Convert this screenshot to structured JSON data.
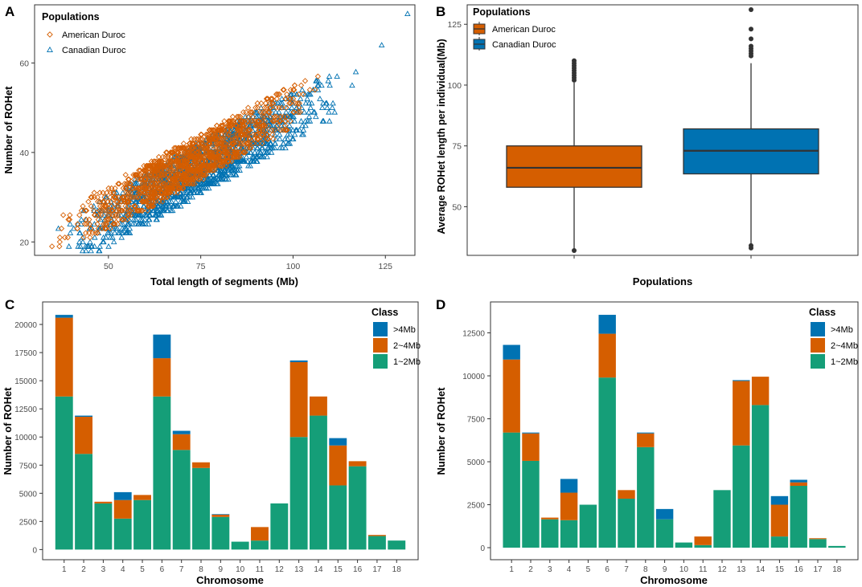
{
  "colors": {
    "orange": "#D55E00",
    "blue": "#0072B2",
    "green": "#159E78",
    "dark": "#333333",
    "frame": "#333333"
  },
  "chart_data": [
    {
      "id": "A",
      "panel_label": "A",
      "type": "scatter",
      "xlabel": "Total length of segments (Mb)",
      "ylabel": "Number of ROHet",
      "xlim": [
        30,
        133
      ],
      "ylim": [
        17,
        73
      ],
      "xticks": [
        50,
        75,
        100,
        125
      ],
      "yticks": [
        20,
        40,
        60
      ],
      "legend_title": "Populations",
      "series": [
        {
          "name": "American Duroc",
          "marker": "diamond",
          "color": "#D55E00",
          "trend": {
            "slope": 0.46,
            "intercept": 4.5,
            "x_range": [
              32,
              112
            ],
            "spread_x": 7,
            "n": 1300
          }
        },
        {
          "name": "Canadian Duroc",
          "marker": "triangle",
          "color": "#0072B2",
          "trend": {
            "slope": 0.46,
            "intercept": 2.0,
            "x_range": [
              33,
              118
            ],
            "spread_x": 8,
            "n": 1700
          },
          "outliers": [
            [
              131,
              71
            ],
            [
              124,
              64
            ],
            [
              117,
              58
            ],
            [
              116,
              55
            ]
          ]
        }
      ]
    },
    {
      "id": "B",
      "panel_label": "B",
      "type": "box",
      "xlabel": "Populations",
      "ylabel": "Average ROHet length per individual(Mb)",
      "ylim": [
        30,
        133
      ],
      "yticks": [
        50,
        75,
        100,
        125
      ],
      "legend_title": "Populations",
      "series": [
        {
          "name": "American Duroc",
          "color": "#D55E00",
          "whisker_low": 32,
          "q1": 58,
          "median": 66,
          "q3": 75,
          "whisker_high": 101,
          "outliers": [
            32,
            102,
            103,
            104,
            105,
            106,
            107,
            108,
            109,
            110
          ]
        },
        {
          "name": "Canadian Duroc",
          "color": "#0072B2",
          "whisker_low": 34,
          "q1": 63.5,
          "median": 73,
          "q3": 82,
          "whisker_high": 109,
          "outliers": [
            33,
            34,
            112,
            113,
            114,
            115,
            116,
            119,
            123,
            131
          ]
        }
      ]
    },
    {
      "id": "C",
      "panel_label": "C",
      "type": "stacked-bar",
      "xlabel": "Chromosome",
      "ylabel": "Number of ROHet",
      "ylim": [
        -900,
        22000
      ],
      "yticks": [
        0,
        2500,
        5000,
        7500,
        10000,
        12500,
        15000,
        17500,
        20000
      ],
      "ytick_labels": [
        "0",
        "2500",
        "5000",
        "7500",
        "10000",
        "12500",
        "15000",
        "17500",
        "20000"
      ],
      "categories": [
        "1",
        "2",
        "3",
        "4",
        "5",
        "6",
        "7",
        "8",
        "9",
        "10",
        "11",
        "12",
        "13",
        "14",
        "15",
        "16",
        "17",
        "18"
      ],
      "legend_title": "Class",
      "legend_order": [
        ">4Mb",
        "2~4Mb",
        "1~2Mb"
      ],
      "series": [
        {
          "name": "1~2Mb",
          "color": "#159E78",
          "values": [
            13600,
            8500,
            4100,
            2750,
            4400,
            13600,
            8850,
            7250,
            2900,
            700,
            800,
            4100,
            10000,
            11900,
            5700,
            7400,
            1200,
            800
          ]
        },
        {
          "name": "2~4Mb",
          "color": "#D55E00",
          "values": [
            7000,
            3300,
            150,
            1650,
            450,
            3400,
            1400,
            500,
            200,
            0,
            1200,
            0,
            6650,
            1700,
            3550,
            450,
            100,
            0
          ]
        },
        {
          "name": ">4Mb",
          "color": "#0072B2",
          "values": [
            250,
            100,
            0,
            700,
            0,
            2100,
            300,
            0,
            50,
            0,
            0,
            0,
            150,
            0,
            650,
            0,
            0,
            0
          ]
        }
      ]
    },
    {
      "id": "D",
      "panel_label": "D",
      "type": "stacked-bar",
      "xlabel": "Chromosome",
      "ylabel": "Number of ROHet",
      "ylim": [
        -700,
        14300
      ],
      "yticks": [
        0,
        2500,
        5000,
        7500,
        10000,
        12500
      ],
      "ytick_labels": [
        "0",
        "2500",
        "5000",
        "7500",
        "10000",
        "12500"
      ],
      "categories": [
        "1",
        "2",
        "3",
        "4",
        "5",
        "6",
        "7",
        "8",
        "9",
        "10",
        "11",
        "12",
        "13",
        "14",
        "15",
        "16",
        "17",
        "18"
      ],
      "legend_title": "Class",
      "legend_order": [
        ">4Mb",
        "2~4Mb",
        "1~2Mb"
      ],
      "series": [
        {
          "name": "1~2Mb",
          "color": "#159E78",
          "values": [
            6700,
            5050,
            1650,
            1600,
            2500,
            9900,
            2850,
            5850,
            1650,
            300,
            150,
            3350,
            5950,
            8300,
            650,
            3600,
            500,
            100
          ]
        },
        {
          "name": "2~4Mb",
          "color": "#D55E00",
          "values": [
            4250,
            1600,
            100,
            1600,
            0,
            2550,
            500,
            800,
            0,
            0,
            500,
            0,
            3750,
            1650,
            1850,
            200,
            50,
            0
          ]
        },
        {
          "name": ">4Mb",
          "color": "#0072B2",
          "values": [
            850,
            50,
            0,
            800,
            0,
            1100,
            0,
            50,
            600,
            0,
            0,
            0,
            50,
            0,
            500,
            150,
            0,
            0
          ]
        }
      ]
    }
  ]
}
